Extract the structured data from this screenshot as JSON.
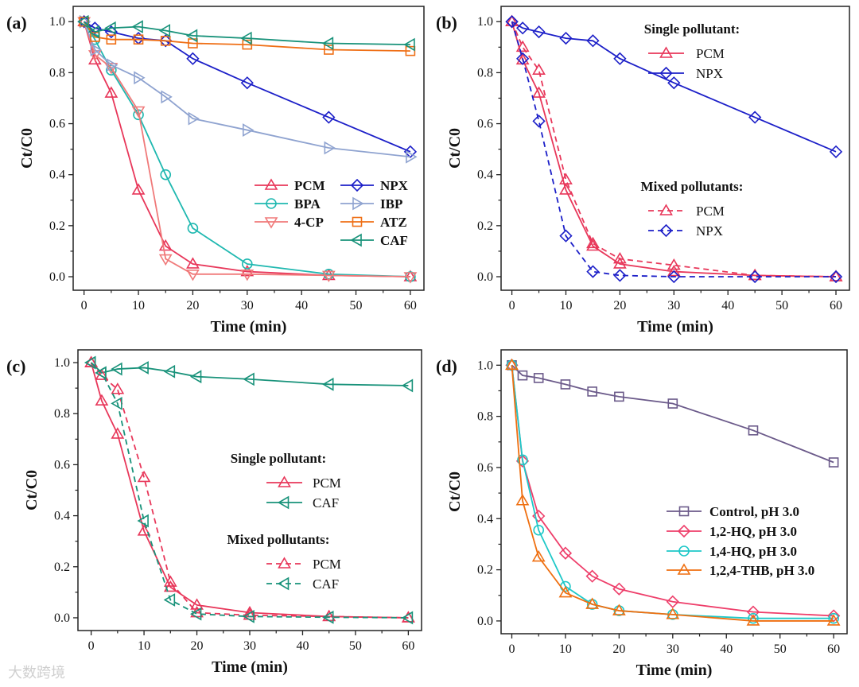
{
  "watermark": "大数跨境",
  "chart_data": [
    {
      "type": "line",
      "panel_label": "(a)",
      "xlabel": "Time (min)",
      "ylabel": "Ct/C0",
      "xlim": [
        -2,
        62.5
      ],
      "ylim": [
        -0.053,
        1.06
      ],
      "xticks": [
        0,
        10,
        20,
        30,
        40,
        50,
        60
      ],
      "yticks": [
        0.0,
        0.2,
        0.4,
        0.6,
        0.8,
        1.0
      ],
      "x": [
        0,
        2,
        5,
        10,
        15,
        20,
        30,
        45,
        60
      ],
      "legend_placement": "lower-right",
      "series": [
        {
          "name": "PCM",
          "color": "#e8375a",
          "marker": "triangle-up",
          "dash": false,
          "values": [
            1,
            0.85,
            0.72,
            0.34,
            0.12,
            0.05,
            0.02,
            0.005,
            0
          ]
        },
        {
          "name": "BPA",
          "color": "#1fb8b0",
          "marker": "circle",
          "dash": false,
          "values": [
            1,
            0.93,
            0.81,
            0.635,
            0.4,
            0.19,
            0.05,
            0.01,
            0
          ]
        },
        {
          "name": "4-CP",
          "color": "#f07a7a",
          "marker": "triangle-down",
          "dash": false,
          "values": [
            1,
            0.87,
            0.82,
            0.65,
            0.07,
            0.01,
            0.01,
            0.005,
            0
          ]
        },
        {
          "name": "NPX",
          "color": "#1c1fc8",
          "marker": "diamond",
          "dash": false,
          "values": [
            1,
            0.975,
            0.96,
            0.935,
            0.925,
            0.855,
            0.76,
            0.625,
            0.49
          ]
        },
        {
          "name": "IBP",
          "color": "#8fa3d0",
          "marker": "triangle-right",
          "dash": false,
          "values": [
            1,
            0.89,
            0.83,
            0.78,
            0.705,
            0.62,
            0.575,
            0.505,
            0.47
          ]
        },
        {
          "name": "ATZ",
          "color": "#ef6f16",
          "marker": "square",
          "dash": false,
          "values": [
            1,
            0.94,
            0.93,
            0.93,
            0.925,
            0.915,
            0.91,
            0.89,
            0.885
          ]
        },
        {
          "name": "CAF",
          "color": "#18927a",
          "marker": "triangle-left",
          "dash": false,
          "values": [
            1,
            0.96,
            0.975,
            0.98,
            0.965,
            0.945,
            0.935,
            0.915,
            0.91
          ]
        }
      ]
    },
    {
      "type": "line",
      "panel_label": "(b)",
      "xlabel": "Time (min)",
      "ylabel": "Ct/C0",
      "xlim": [
        -2,
        62.5
      ],
      "ylim": [
        -0.053,
        1.06
      ],
      "xticks": [
        0,
        10,
        20,
        30,
        40,
        50,
        60
      ],
      "yticks": [
        0.0,
        0.2,
        0.4,
        0.6,
        0.8,
        1.0
      ],
      "x": [
        0,
        2,
        5,
        10,
        15,
        20,
        30,
        45,
        60
      ],
      "legend_placement": "right",
      "legend_groups": [
        "Single pollutant:",
        "Mixed pollutants:"
      ],
      "series": [
        {
          "name": "PCM",
          "group": 0,
          "color": "#e8375a",
          "marker": "triangle-up",
          "dash": false,
          "values": [
            1,
            0.85,
            0.72,
            0.34,
            0.12,
            0.05,
            0.02,
            0.005,
            0
          ]
        },
        {
          "name": "NPX",
          "group": 0,
          "color": "#1c1fc8",
          "marker": "diamond",
          "dash": false,
          "values": [
            1,
            0.975,
            0.96,
            0.935,
            0.925,
            0.855,
            0.76,
            0.625,
            0.49
          ]
        },
        {
          "name": "PCM",
          "group": 1,
          "color": "#e8375a",
          "marker": "triangle-up",
          "dash": true,
          "values": [
            1,
            0.9,
            0.81,
            0.38,
            0.13,
            0.07,
            0.045,
            0.005,
            0
          ]
        },
        {
          "name": "NPX",
          "group": 1,
          "color": "#1c1fc8",
          "marker": "diamond",
          "dash": true,
          "values": [
            1,
            0.855,
            0.61,
            0.16,
            0.02,
            0.005,
            0,
            0,
            0
          ]
        }
      ]
    },
    {
      "type": "line",
      "panel_label": "(c)",
      "xlabel": "Time (min)",
      "ylabel": "Ct/C0",
      "xlim": [
        -2.5,
        62.5
      ],
      "ylim": [
        -0.05,
        1.05
      ],
      "xticks": [
        0,
        10,
        20,
        30,
        40,
        50,
        60
      ],
      "yticks": [
        0.0,
        0.2,
        0.4,
        0.6,
        0.8,
        1.0
      ],
      "x": [
        0,
        2,
        5,
        10,
        15,
        20,
        30,
        45,
        60
      ],
      "legend_placement": "right",
      "legend_groups": [
        "Single pollutant:",
        "Mixed pollutants:"
      ],
      "series": [
        {
          "name": "PCM",
          "group": 0,
          "color": "#e8375a",
          "marker": "triangle-up",
          "dash": false,
          "values": [
            1,
            0.85,
            0.72,
            0.34,
            0.12,
            0.05,
            0.02,
            0.005,
            0
          ]
        },
        {
          "name": "CAF",
          "group": 0,
          "color": "#18927a",
          "marker": "triangle-left",
          "dash": false,
          "values": [
            1,
            0.96,
            0.975,
            0.98,
            0.965,
            0.945,
            0.935,
            0.915,
            0.91
          ]
        },
        {
          "name": "PCM",
          "group": 1,
          "color": "#e8375a",
          "marker": "triangle-up",
          "dash": true,
          "values": [
            1,
            0.95,
            0.895,
            0.55,
            0.14,
            0.02,
            0.01,
            0.005,
            0
          ]
        },
        {
          "name": "CAF",
          "group": 1,
          "color": "#18927a",
          "marker": "triangle-left",
          "dash": true,
          "values": [
            1,
            0.96,
            0.84,
            0.38,
            0.07,
            0.015,
            0.005,
            0.002,
            0
          ]
        }
      ]
    },
    {
      "type": "line",
      "panel_label": "(d)",
      "xlabel": "Time (min)",
      "ylabel": "Ct/C0",
      "xlim": [
        -2,
        62.5
      ],
      "ylim": [
        -0.05,
        1.06
      ],
      "xticks": [
        0,
        10,
        20,
        30,
        40,
        50,
        60
      ],
      "yticks": [
        0.0,
        0.2,
        0.4,
        0.6,
        0.8,
        1.0
      ],
      "x": [
        0,
        2,
        5,
        10,
        15,
        20,
        30,
        45,
        60
      ],
      "legend_placement": "lower-right",
      "series": [
        {
          "name": "Control, pH 3.0",
          "color": "#6b5a8a",
          "marker": "square",
          "dash": false,
          "values": [
            1,
            0.96,
            0.95,
            0.925,
            0.897,
            0.877,
            0.85,
            0.745,
            0.62
          ]
        },
        {
          "name": "1,2-HQ, pH 3.0",
          "color": "#ee3e6a",
          "marker": "diamond",
          "dash": false,
          "values": [
            1,
            0.625,
            0.41,
            0.265,
            0.175,
            0.125,
            0.075,
            0.035,
            0.02
          ]
        },
        {
          "name": "1,4-HQ, pH 3.0",
          "color": "#1ec8c8",
          "marker": "circle",
          "dash": false,
          "values": [
            1,
            0.63,
            0.355,
            0.135,
            0.065,
            0.04,
            0.025,
            0.01,
            0.01
          ]
        },
        {
          "name": "1,2,4-THB, pH 3.0",
          "color": "#ef6f10",
          "marker": "triangle-up",
          "dash": false,
          "values": [
            1,
            0.47,
            0.25,
            0.11,
            0.065,
            0.04,
            0.025,
            0,
            0
          ]
        }
      ]
    }
  ]
}
